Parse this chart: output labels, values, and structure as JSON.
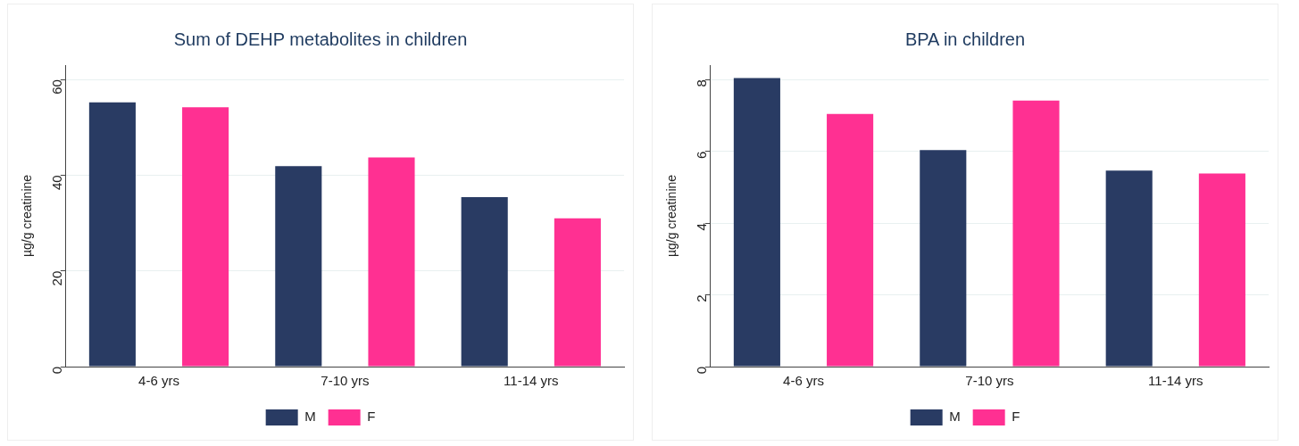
{
  "chart_data": [
    {
      "type": "bar",
      "title": "Sum of DEHP metabolites in children",
      "ylabel": "µg/g creatinine",
      "categories": [
        "4-6 yrs",
        "7-10 yrs",
        "11-14 yrs"
      ],
      "series": [
        {
          "name": "M",
          "color": "#293b63",
          "values": [
            55.2,
            41.9,
            35.4
          ]
        },
        {
          "name": "F",
          "color": "#ff3092",
          "values": [
            54.2,
            43.7,
            31.0
          ]
        }
      ],
      "ylim": [
        0,
        63
      ],
      "yticks": [
        0,
        20,
        40,
        60
      ],
      "grid": "y",
      "legend": "bottom"
    },
    {
      "type": "bar",
      "title": "BPA in children",
      "ylabel": "µg/g creatinine",
      "categories": [
        "4-6 yrs",
        "7-10 yrs",
        "11-14 yrs"
      ],
      "series": [
        {
          "name": "M",
          "color": "#293b63",
          "values": [
            8.04,
            6.03,
            5.46
          ]
        },
        {
          "name": "F",
          "color": "#ff3092",
          "values": [
            7.04,
            7.41,
            5.38
          ]
        }
      ],
      "ylim": [
        0,
        8.4
      ],
      "yticks": [
        0,
        2,
        4,
        6,
        8
      ],
      "grid": "y",
      "legend": "bottom"
    }
  ]
}
